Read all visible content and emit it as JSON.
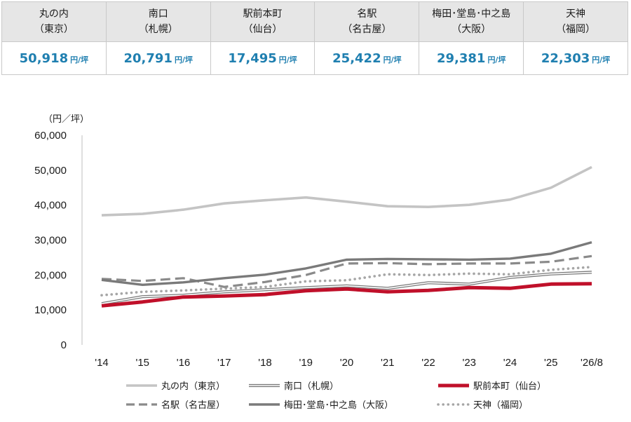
{
  "summary": [
    {
      "name": "丸の内",
      "sub": "（東京）",
      "value": "50,918",
      "unit": "円/坪"
    },
    {
      "name": "南口",
      "sub": "（札幌）",
      "value": "20,791",
      "unit": "円/坪"
    },
    {
      "name": "駅前本町",
      "sub": "（仙台）",
      "value": "17,495",
      "unit": "円/坪"
    },
    {
      "name": "名駅",
      "sub": "（名古屋）",
      "value": "25,422",
      "unit": "円/坪"
    },
    {
      "name": "梅田･堂島･中之島",
      "sub": "（大阪）",
      "value": "29,381",
      "unit": "円/坪"
    },
    {
      "name": "天神",
      "sub": "（福岡）",
      "value": "22,303",
      "unit": "円/坪"
    }
  ],
  "chart_data": {
    "type": "line",
    "ylabel": "（円／坪）",
    "ylim": [
      0,
      60000
    ],
    "yticks": [
      "0",
      "10,000",
      "20,000",
      "30,000",
      "40,000",
      "50,000",
      "60,000"
    ],
    "categories": [
      "'14",
      "'15",
      "'16",
      "'17",
      "'18",
      "'19",
      "'20",
      "'21",
      "'22",
      "'23",
      "'24",
      "'25",
      "'26/8"
    ],
    "grid": false,
    "legend_position": "bottom",
    "series": [
      {
        "name": "丸の内（東京）",
        "color": "#c4c4c4",
        "style": "solid",
        "values": [
          37100,
          37500,
          38700,
          40500,
          41400,
          42200,
          41000,
          39700,
          39500,
          40100,
          41600,
          45000,
          50918
        ]
      },
      {
        "name": "南口（札幌）",
        "color": "#7a7a7a",
        "style": "double",
        "values": [
          11800,
          13800,
          14200,
          15200,
          15800,
          16400,
          16900,
          16200,
          17800,
          17400,
          19300,
          20300,
          20791
        ]
      },
      {
        "name": "駅前本町（仙台）",
        "color": "#c0102a",
        "style": "thick",
        "values": [
          11200,
          12300,
          13700,
          14000,
          14400,
          15500,
          16000,
          15200,
          15600,
          16400,
          16200,
          17400,
          17495
        ]
      },
      {
        "name": "名駅（名古屋）",
        "color": "#8a8a8a",
        "style": "dashed",
        "values": [
          18900,
          18300,
          19100,
          16600,
          18000,
          20000,
          23300,
          23400,
          23100,
          23300,
          23300,
          23800,
          25422
        ]
      },
      {
        "name": "梅田･堂島･中之島（大阪）",
        "color": "#7a7a7a",
        "style": "solid",
        "values": [
          18600,
          17200,
          17900,
          19100,
          20100,
          21900,
          24400,
          24600,
          24500,
          24400,
          24700,
          26100,
          29381
        ]
      },
      {
        "name": "天神（福岡）",
        "color": "#a6a6a6",
        "style": "dotted",
        "values": [
          14200,
          15200,
          15600,
          16100,
          16600,
          18200,
          18500,
          20200,
          20000,
          20400,
          20200,
          21500,
          22303
        ]
      }
    ]
  }
}
